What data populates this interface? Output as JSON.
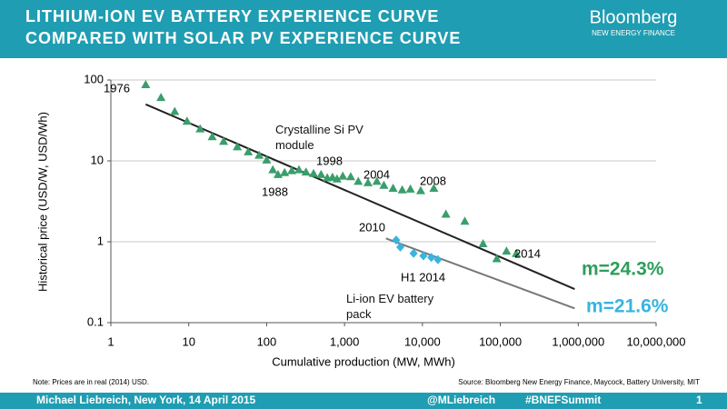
{
  "header": {
    "title_lines": [
      "LITHIUM-ION EV BATTERY EXPERIENCE CURVE",
      "COMPARED WITH SOLAR PV EXPERIENCE CURVE"
    ],
    "logo": "Bloomberg",
    "logo_sub": "NEW ENERGY FINANCE"
  },
  "chart_data": {
    "type": "scatter",
    "xlabel": "Cumulative production (MW, MWh)",
    "ylabel": "Historical price (USD/W, USD/Wh)",
    "xscale": "log",
    "yscale": "log",
    "xlim": [
      1,
      10000000
    ],
    "ylim": [
      0.1,
      100
    ],
    "xticks": [
      1,
      10,
      100,
      {
        "value": 1000,
        "label": "1,000"
      },
      {
        "value": 10000,
        "label": "10,000"
      },
      {
        "value": 100000,
        "label": "100,000"
      },
      {
        "value": 1000000,
        "label": "1,000,000"
      },
      {
        "value": 10000000,
        "label": "10,000,000"
      }
    ],
    "yticks": [
      0.1,
      1,
      10,
      100
    ],
    "grid": true,
    "series": [
      {
        "name": "Crystalline Si PV module",
        "color": "#3a9e6c",
        "marker": "triangle",
        "x": [
          2.8,
          4.4,
          6.6,
          9.5,
          14,
          20,
          28,
          42,
          58,
          80,
          100,
          120,
          140,
          170,
          210,
          260,
          320,
          400,
          500,
          600,
          700,
          800,
          950,
          1200,
          1500,
          2000,
          2600,
          3200,
          4200,
          5500,
          7000,
          9500,
          14000,
          20000,
          35000,
          60000,
          90000,
          120000,
          160000
        ],
        "y": [
          88,
          61,
          41,
          31,
          25,
          20,
          17.5,
          15,
          13,
          11.8,
          10.3,
          7.8,
          6.8,
          7.2,
          7.6,
          7.8,
          7.3,
          7,
          6.8,
          6.2,
          6.3,
          6,
          6.5,
          6.4,
          5.6,
          5.4,
          5.6,
          5,
          4.6,
          4.4,
          4.5,
          4.3,
          4.6,
          2.2,
          1.8,
          0.95,
          0.62,
          0.77,
          0.72
        ],
        "trend": {
          "label": "m=24.3%",
          "color": "#222222",
          "label_color": "#2e9e5b",
          "x": [
            2.8,
            900000
          ],
          "y": [
            50,
            0.26
          ]
        }
      },
      {
        "name": "Li-ion EV battery pack",
        "color": "#38b4df",
        "marker": "diamond",
        "x": [
          4600,
          5200,
          7700,
          10300,
          13000,
          15800
        ],
        "y": [
          1.05,
          0.86,
          0.72,
          0.67,
          0.64,
          0.6
        ],
        "trend": {
          "label": "m=21.6%",
          "color": "#777777",
          "label_color": "#38b4df",
          "x": [
            3400,
            900000
          ],
          "y": [
            1.1,
            0.15
          ]
        }
      }
    ],
    "annotations": [
      "1976",
      "1988",
      "1998",
      "2004",
      "2008",
      "2010",
      "2014",
      "H1 2014"
    ]
  },
  "notes": {
    "note": "Note: Prices are in real (2014) USD.",
    "source": "Source: Bloomberg New Energy Finance, Maycock, Battery University, MIT"
  },
  "footer": {
    "author": "Michael  Liebreich,  New York, 14 April  2015",
    "handle": "@MLiebreich",
    "tag": "#BNEFSummit",
    "page": "1"
  }
}
